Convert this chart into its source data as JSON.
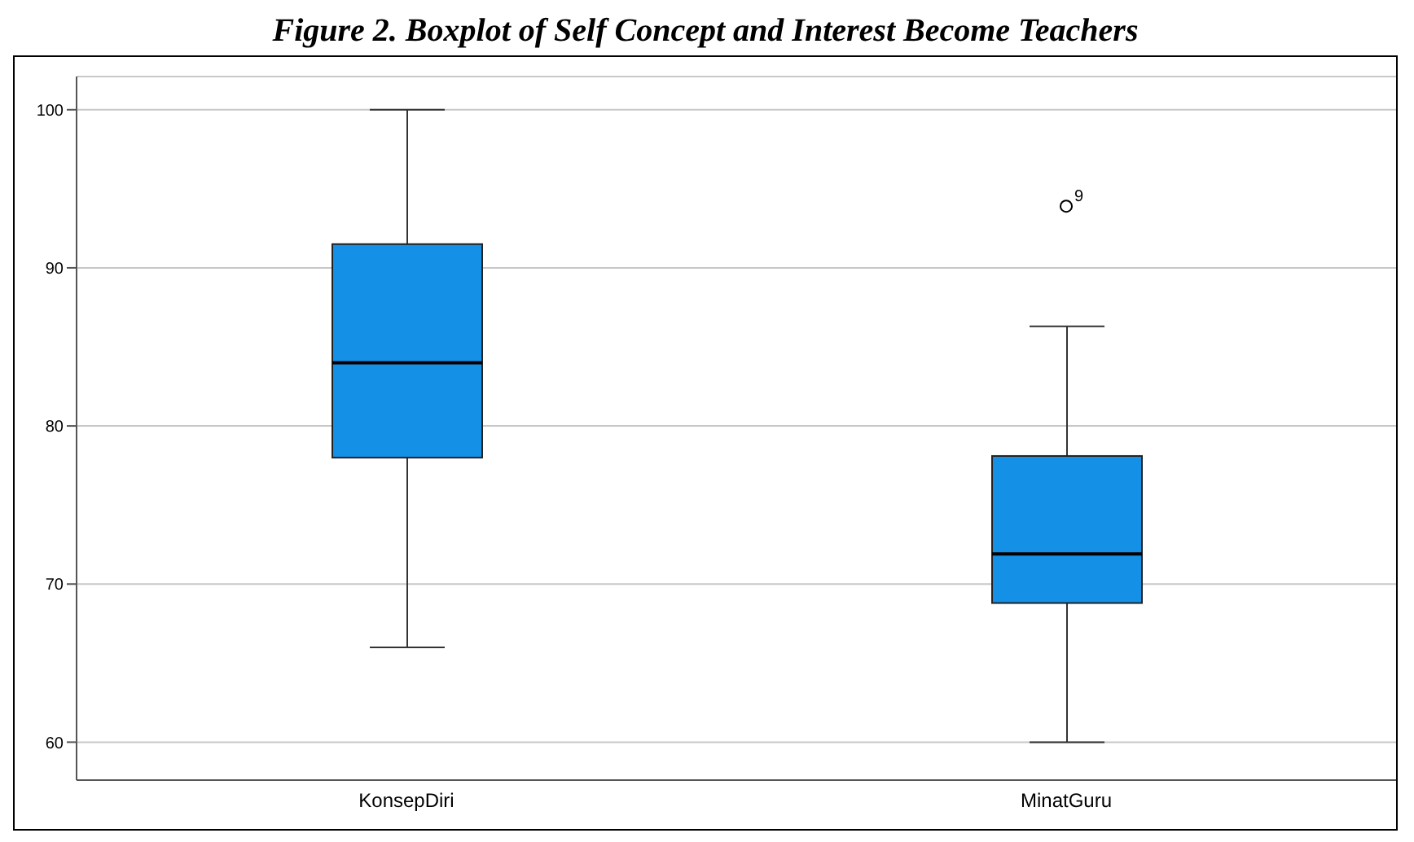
{
  "chart_data": {
    "type": "box",
    "title": "Figure 2. Boxplot of Self Concept and Interest Become Teachers",
    "categories": [
      "KonsepDiri",
      "MinatGuru"
    ],
    "boxes": [
      {
        "low": 66,
        "q1": 78,
        "median": 84,
        "q3": 91.5,
        "high": 100
      },
      {
        "low": 60,
        "q1": 68.8,
        "median": 71.9,
        "q3": 78.1,
        "high": 86.3,
        "outliers": [
          93.9
        ]
      }
    ],
    "color": "#1490e6",
    "ylim": [
      57.6,
      102.1
    ],
    "yticks": [
      60,
      70,
      80,
      90,
      100
    ],
    "grid": "y",
    "annotations": [
      "9"
    ]
  }
}
